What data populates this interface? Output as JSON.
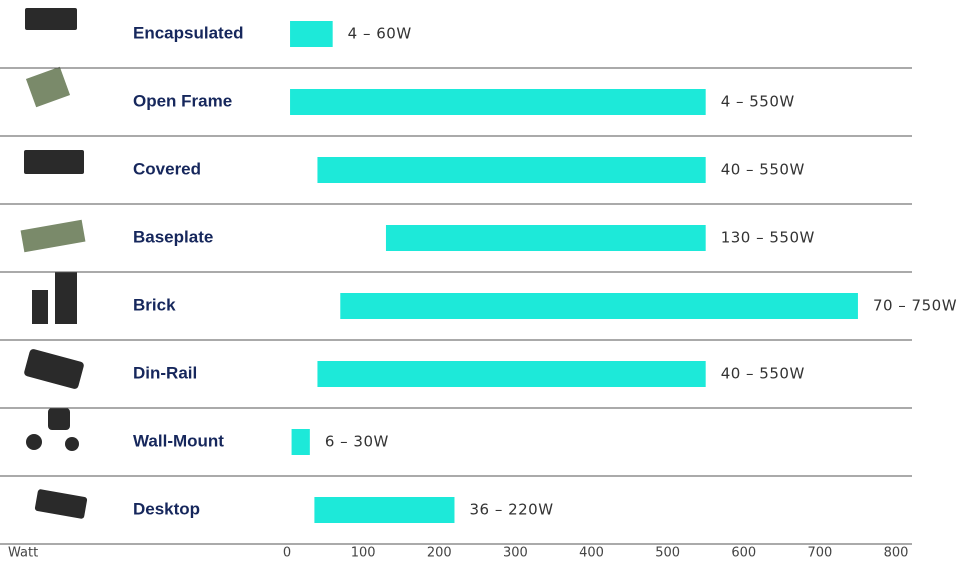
{
  "chart_data": {
    "type": "range-bar",
    "categories": [
      "Encapsulated",
      "Open Frame",
      "Covered",
      "Baseplate",
      "Brick",
      "Din-Rail",
      "Wall-Mount",
      "Desktop"
    ],
    "values": [
      [
        4,
        60
      ],
      [
        4,
        550
      ],
      [
        40,
        550
      ],
      [
        130,
        550
      ],
      [
        70,
        750
      ],
      [
        40,
        550
      ],
      [
        6,
        30
      ],
      [
        36,
        220
      ]
    ],
    "value_labels": [
      "4 – 60W",
      "4 – 550W",
      "40 – 550W",
      "130 – 550W",
      "70 – 750W",
      "40 – 550W",
      "6 – 30W",
      "36 – 220W"
    ],
    "color": "#1de9d9",
    "x_label": "Watt",
    "xlim": [
      0,
      800
    ],
    "xticks": [
      0,
      100,
      200,
      300,
      400,
      500,
      600,
      700,
      800
    ]
  }
}
